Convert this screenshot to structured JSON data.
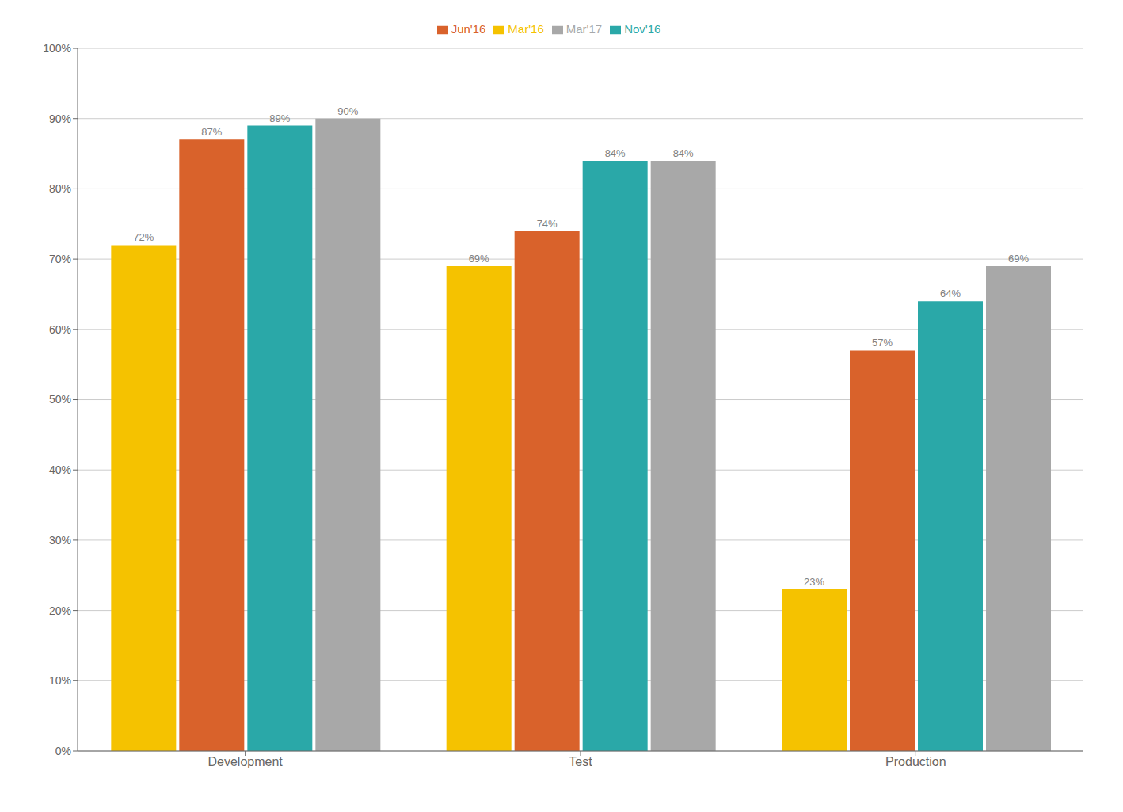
{
  "chart_data": {
    "type": "bar",
    "categories": [
      "Development",
      "Test",
      "Production"
    ],
    "series": [
      {
        "name": "Mar'16",
        "color": "#F5C200",
        "values": [
          0.72,
          0.69,
          0.23
        ],
        "value_labels": [
          "72%",
          "69%",
          "23%"
        ]
      },
      {
        "name": "Jun'16",
        "color": "#D9622B",
        "values": [
          0.87,
          0.74,
          0.57
        ],
        "value_labels": [
          "87%",
          "74%",
          "57%"
        ]
      },
      {
        "name": "Nov'16",
        "color": "#2AA8A8",
        "values": [
          0.89,
          0.84,
          0.64
        ],
        "value_labels": [
          "89%",
          "84%",
          "64%"
        ]
      },
      {
        "name": "Mar'17",
        "color": "#A8A8A8",
        "values": [
          0.9,
          0.84,
          0.69
        ],
        "value_labels": [
          "90%",
          "84%",
          "69%"
        ]
      }
    ],
    "ylim": [
      0,
      1.0
    ],
    "yticks": [
      {
        "value": 0,
        "label": "0%"
      },
      {
        "value": 0.1,
        "label": "10%"
      },
      {
        "value": 0.2,
        "label": "20%"
      },
      {
        "value": 0.3,
        "label": "30%"
      },
      {
        "value": 0.4,
        "label": "40%"
      },
      {
        "value": 0.5,
        "label": "50%"
      },
      {
        "value": 0.6,
        "label": "60%"
      },
      {
        "value": 0.7,
        "label": "70%"
      },
      {
        "value": 0.8,
        "label": "80%"
      },
      {
        "value": 0.9,
        "label": "90%"
      },
      {
        "value": 1.0,
        "label": "100%"
      }
    ],
    "grid": true,
    "legend": "top",
    "data_labels": true
  }
}
